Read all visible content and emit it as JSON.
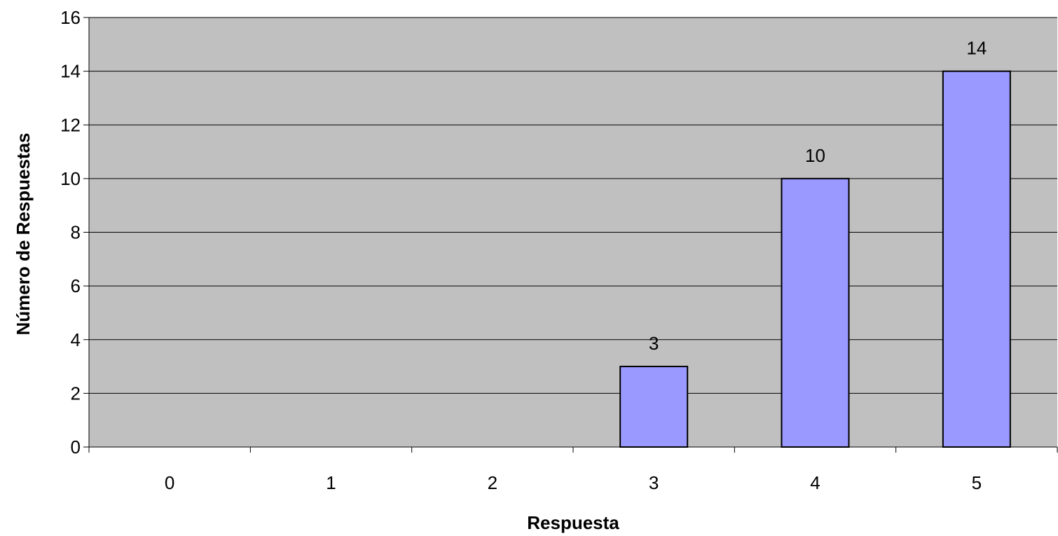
{
  "chart_data": {
    "type": "bar",
    "title": "",
    "xlabel": "Respuesta",
    "ylabel": "Número de Respuestas",
    "categories": [
      "0",
      "1",
      "2",
      "3",
      "4",
      "5"
    ],
    "values": [
      0,
      0,
      0,
      3,
      10,
      14
    ],
    "data_labels": [
      "",
      "",
      "",
      "3",
      "10",
      "14"
    ],
    "ylim": [
      0,
      16
    ],
    "y_ticks": [
      "0",
      "2",
      "4",
      "6",
      "8",
      "10",
      "12",
      "14",
      "16"
    ],
    "grid": true,
    "legend": "none",
    "colors": {
      "bar": "#9999ff",
      "plot_area": "#c0c0c0",
      "gridline": "#000000",
      "axis": "#000000"
    }
  }
}
